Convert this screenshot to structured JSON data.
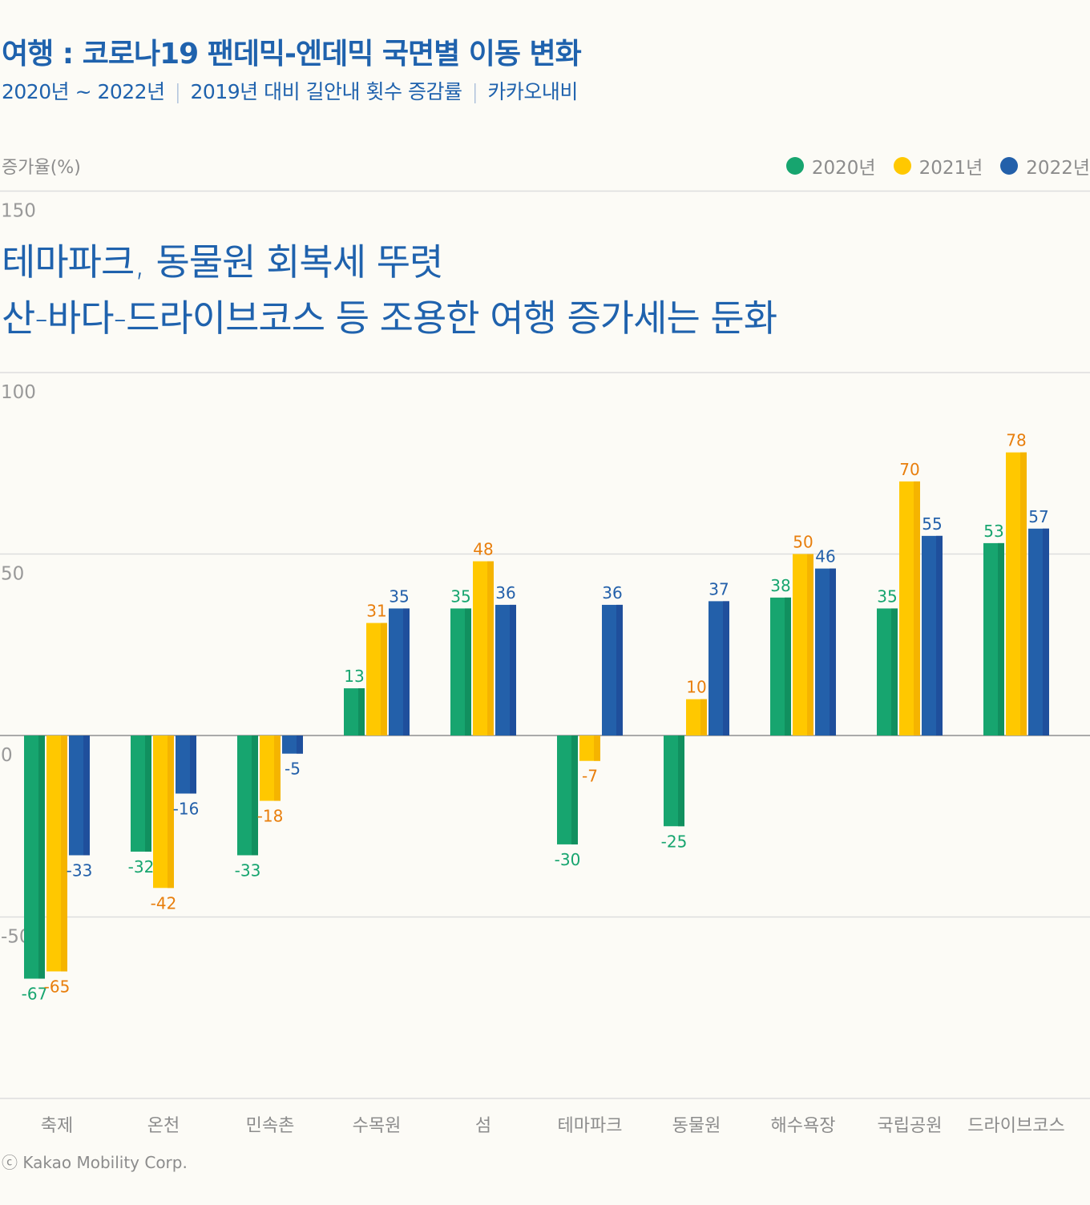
{
  "header": {
    "title": "여행 : 코로나19 팬데믹-엔데믹 국면별 이동 변화",
    "subtitle_parts": [
      "2020년 ~ 2022년",
      "2019년 대비 길안내 횟수 증감률",
      "카카오내비"
    ]
  },
  "annotation": {
    "line1": "테마파크, 동물원 회복세 뚜렷",
    "line2": "산-바다-드라이브코스 등 조용한 여행 증가세는 둔화"
  },
  "footer": "ⓒ Kakao Mobility Corp.",
  "colors": {
    "2020": "#17a56f",
    "2021": "#ffc800",
    "2022": "#2360aa",
    "label_2021": "#e87e0c",
    "title": "#1f62ad"
  },
  "chart_data": {
    "type": "bar",
    "ylabel": "증가율(%)",
    "ylim": [
      -100,
      150
    ],
    "yticks": [
      150,
      100,
      50,
      0,
      -50
    ],
    "grid": true,
    "legend_position": "top-right",
    "categories": [
      "축제",
      "온천",
      "민속촌",
      "수목원",
      "섬",
      "테마파크",
      "동물원",
      "해수욕장",
      "국립공원",
      "드라이브코스"
    ],
    "series": [
      {
        "name": "2020년",
        "values": [
          -67,
          -32,
          -33,
          13,
          35,
          -30,
          -25,
          38,
          35,
          53
        ]
      },
      {
        "name": "2021년",
        "values": [
          -65,
          -42,
          -18,
          31,
          48,
          -7,
          10,
          50,
          70,
          78
        ]
      },
      {
        "name": "2022년",
        "values": [
          -33,
          -16,
          -5,
          35,
          36,
          36,
          37,
          46,
          55,
          57
        ]
      }
    ]
  }
}
